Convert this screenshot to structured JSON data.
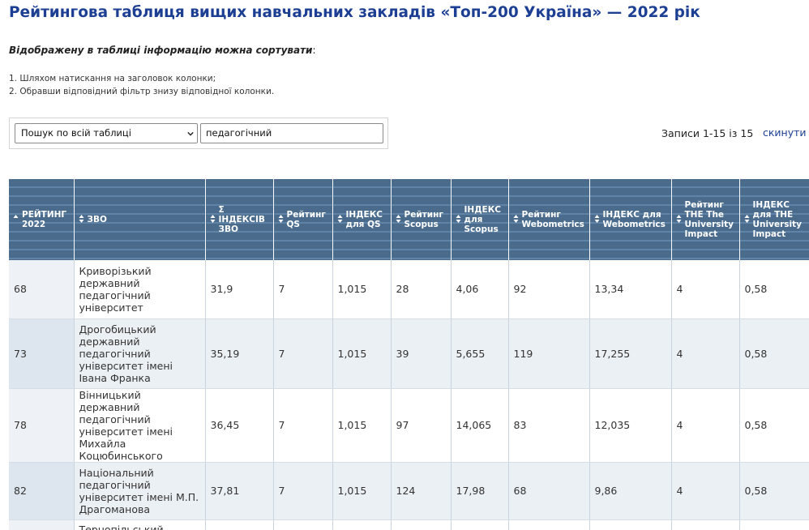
{
  "page": {
    "title": "Рейтингова таблиця вищих навчальних закладів «Топ-200 Україна» — 2022 рік",
    "sort_heading": "Відображену в таблиці інформацію можна сортувати",
    "sort_heading_suffix": ":",
    "sort_steps": [
      "1. Шляхом натискання на заголовок колонки;",
      "2. Обравши відповідний фільтр знизу відповідної колонки."
    ]
  },
  "search": {
    "select_value": "Пошук по всій таблиці",
    "input_value": "педагогічний",
    "records_text": "Записи 1-15 із 15",
    "reset_label": "скинути"
  },
  "table": {
    "headers": [
      "РЕЙТИНГ 2022",
      "ЗВО",
      "Σ ІНДЕКСІВ ЗВО",
      "Рейтинг QS",
      "ІНДЕКС для QS",
      "Рейтинг Scopus",
      "ІНДЕКС для Scopus",
      "Рейтинг Webometrics",
      "ІНДЕКС для Webometrics",
      "Рейтинг THE The University Impact",
      "ІНДЕКС для THE University Impact"
    ],
    "rows": [
      [
        "68",
        "Криворізький державний педагогічний університет",
        "31,9",
        "7",
        "1,015",
        "28",
        "4,06",
        "92",
        "13,34",
        "4",
        "0,58"
      ],
      [
        "73",
        "Дрогобицький державний педагогічний університет імені Івана Франка",
        "35,19",
        "7",
        "1,015",
        "39",
        "5,655",
        "119",
        "17,255",
        "4",
        "0,58"
      ],
      [
        "78",
        "Вінницький державний педагогічний університет імені Михайла Коцюбинського",
        "36,45",
        "7",
        "1,015",
        "97",
        "14,065",
        "83",
        "12,035",
        "4",
        "0,58"
      ],
      [
        "82",
        "Національний педагогічний університет імені М.П. Драгоманова",
        "37,81",
        "7",
        "1,015",
        "124",
        "17,98",
        "68",
        "9,86",
        "4",
        "0,58"
      ],
      [
        "",
        "Тернопільський",
        "",
        "",
        "",
        "",
        "",
        "",
        "",
        "",
        ""
      ]
    ]
  },
  "colors": {
    "title": "#1c3f94",
    "header_bg": "#4a6b8c",
    "row_alt": "#ebf0f5",
    "link": "#1c3f94"
  }
}
